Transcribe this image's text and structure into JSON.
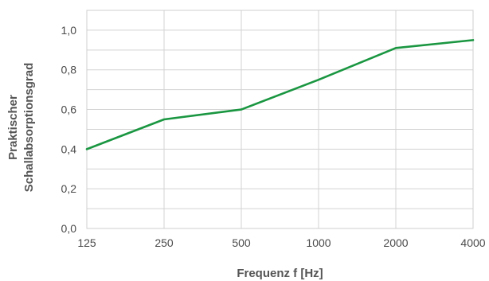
{
  "chart_data": {
    "type": "line",
    "title": "",
    "xlabel": "Frequenz f [Hz]",
    "ylabel_lines": [
      "Praktischer",
      "Schallabsorptionsgrad"
    ],
    "categories": [
      "125",
      "250",
      "500",
      "1000",
      "2000",
      "4000"
    ],
    "y_ticks": [
      "0,0",
      "0,2",
      "0,4",
      "0,6",
      "0,8",
      "1,0"
    ],
    "ylim": [
      0,
      1.1
    ],
    "grid": true,
    "series": [
      {
        "values": [
          0.4,
          0.55,
          0.6,
          0.75,
          0.91,
          0.95
        ],
        "color": "#1a9641"
      }
    ]
  }
}
